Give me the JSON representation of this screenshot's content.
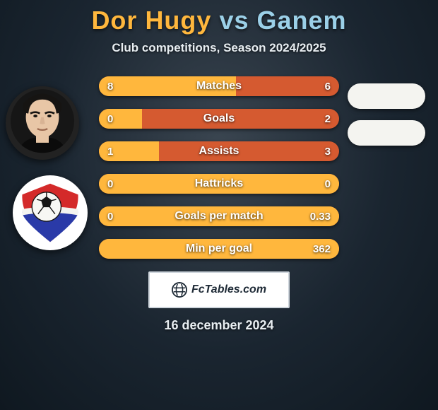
{
  "title": {
    "player1": "Dor Hugy",
    "vs": "vs",
    "player2": "Ganem"
  },
  "subtitle": "Club competitions, Season 2024/2025",
  "colors": {
    "brand_player1": "#ffb73d",
    "brand_player2": "#9bd0e8",
    "bar_left": "#ffb73d",
    "bar_right": "#d55a30",
    "bg": "#1a2530",
    "text_light": "#e8eef2"
  },
  "stats": [
    {
      "label": "Matches",
      "valL": "8",
      "valR": "6",
      "leftPct": 57
    },
    {
      "label": "Goals",
      "valL": "0",
      "valR": "2",
      "leftPct": 18
    },
    {
      "label": "Assists",
      "valL": "1",
      "valR": "3",
      "leftPct": 25
    },
    {
      "label": "Hattricks",
      "valL": "0",
      "valR": "0",
      "leftPct": 100
    },
    {
      "label": "Goals per match",
      "valL": "0",
      "valR": "0.33",
      "leftPct": 100
    },
    {
      "label": "Min per goal",
      "valL": "",
      "valR": "362",
      "leftPct": 100
    }
  ],
  "badge": {
    "text": "FcTables.com"
  },
  "date": "16 december 2024"
}
